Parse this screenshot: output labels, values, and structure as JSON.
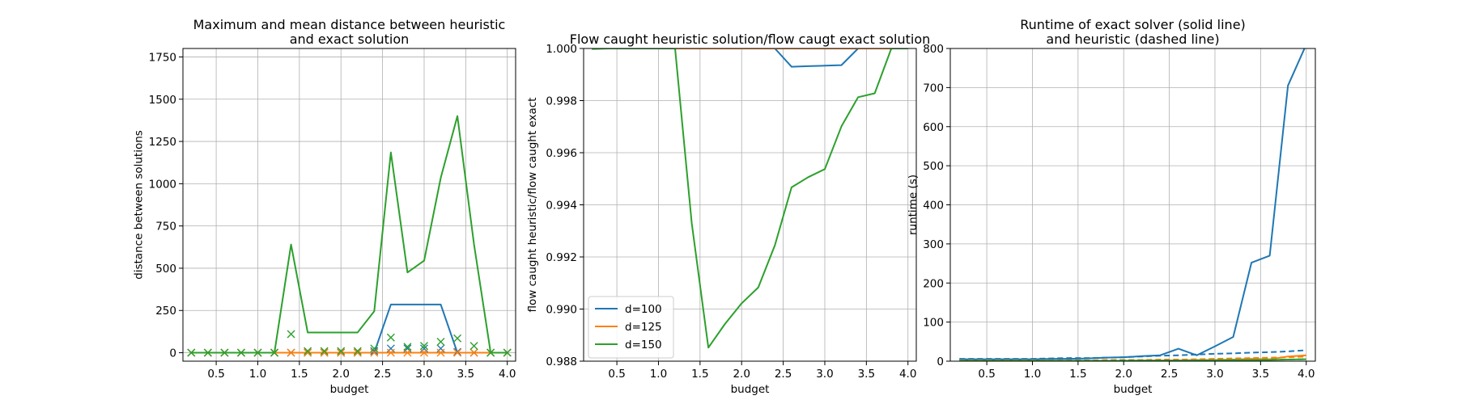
{
  "colors": {
    "d100": "#1f77b4",
    "d125": "#ff7f0e",
    "d150": "#2ca02c",
    "grid": "#b0b0b0",
    "axis": "#000000"
  },
  "chart_data": [
    {
      "type": "line",
      "title": "Maximum and mean distance between heuristic\nand exact solution",
      "xlabel": "budget",
      "ylabel": "distance between solutions",
      "xlim": [
        0.1,
        4.1
      ],
      "ylim": [
        -50,
        1800
      ],
      "xticks": [
        0.5,
        1.0,
        1.5,
        2.0,
        2.5,
        3.0,
        3.5,
        4.0
      ],
      "xtick_labels": [
        "0.5",
        "1.0",
        "1.5",
        "2.0",
        "2.5",
        "3.0",
        "3.5",
        "4.0"
      ],
      "yticks": [
        0,
        250,
        500,
        750,
        1000,
        1250,
        1500,
        1750
      ],
      "ytick_labels": [
        "0",
        "250",
        "500",
        "750",
        "1000",
        "1250",
        "1500",
        "1750"
      ],
      "grid": true,
      "x": [
        0.2,
        0.4,
        0.6,
        0.8,
        1.0,
        1.2,
        1.4,
        1.6,
        1.8,
        2.0,
        2.2,
        2.4,
        2.6,
        2.8,
        3.0,
        3.2,
        3.4,
        3.6,
        3.8,
        4.0
      ],
      "series": [
        {
          "color_key": "d100",
          "line": [
            0,
            0,
            0,
            0,
            0,
            0,
            0,
            0,
            0,
            0,
            0,
            0,
            285,
            285,
            285,
            285,
            0,
            0,
            0,
            0
          ],
          "markers": [
            0,
            0,
            0,
            0,
            0,
            0,
            0,
            0,
            0,
            0,
            0,
            10,
            25,
            25,
            25,
            25,
            5,
            0,
            0,
            0
          ]
        },
        {
          "color_key": "d125",
          "line": [
            0,
            0,
            0,
            0,
            0,
            0,
            0,
            0,
            0,
            0,
            0,
            0,
            0,
            0,
            0,
            0,
            0,
            0,
            0,
            0
          ],
          "markers": [
            0,
            0,
            0,
            0,
            0,
            0,
            0,
            0,
            0,
            0,
            0,
            0,
            0,
            0,
            0,
            0,
            0,
            0,
            0,
            0
          ]
        },
        {
          "color_key": "d150",
          "line": [
            0,
            0,
            0,
            0,
            0,
            0,
            640,
            120,
            120,
            120,
            120,
            245,
            1185,
            475,
            545,
            1035,
            1400,
            640,
            0,
            0
          ],
          "markers": [
            0,
            0,
            0,
            0,
            0,
            0,
            110,
            10,
            10,
            10,
            10,
            25,
            90,
            35,
            40,
            65,
            85,
            40,
            0,
            0
          ]
        }
      ]
    },
    {
      "type": "line",
      "title": "Flow caught heuristic solution/flow caugt exact solution",
      "xlabel": "budget",
      "ylabel": "flow caught heuristic/flow caught exact",
      "xlim": [
        0.1,
        4.1
      ],
      "ylim": [
        0.988,
        1.0
      ],
      "xticks": [
        0.5,
        1.0,
        1.5,
        2.0,
        2.5,
        3.0,
        3.5,
        4.0
      ],
      "xtick_labels": [
        "0.5",
        "1.0",
        "1.5",
        "2.0",
        "2.5",
        "3.0",
        "3.5",
        "4.0"
      ],
      "yticks": [
        0.988,
        0.99,
        0.992,
        0.994,
        0.996,
        0.998,
        1.0
      ],
      "ytick_labels": [
        "0.988",
        "0.990",
        "0.992",
        "0.994",
        "0.996",
        "0.998",
        "1.000"
      ],
      "grid": true,
      "legend_position": "lower-left",
      "x": [
        0.2,
        0.4,
        0.6,
        0.8,
        1.0,
        1.2,
        1.4,
        1.6,
        1.8,
        2.0,
        2.2,
        2.4,
        2.6,
        2.8,
        3.0,
        3.2,
        3.4,
        3.6,
        3.8,
        4.0
      ],
      "series": [
        {
          "name": "d=100",
          "color_key": "d100",
          "values": [
            1.0,
            1.0,
            1.0,
            1.0,
            1.0,
            1.0,
            1.0,
            1.0,
            1.0,
            1.0,
            1.0,
            1.0,
            0.9993,
            0.99932,
            0.99934,
            0.99936,
            1.0,
            1.0,
            1.0,
            1.0
          ]
        },
        {
          "name": "d=125",
          "color_key": "d125",
          "values": [
            1.0,
            1.0,
            1.0,
            1.0,
            1.0,
            1.0,
            1.0,
            1.0,
            1.0,
            1.0,
            1.0,
            1.0,
            1.0,
            1.0,
            1.0,
            1.0,
            1.0,
            1.0,
            1.0,
            1.0
          ]
        },
        {
          "name": "d=150",
          "color_key": "d150",
          "values": [
            0.99998,
            1.0,
            1.0,
            1.0,
            1.0,
            1.0,
            0.9933,
            0.98852,
            0.98943,
            0.99022,
            0.99083,
            0.99245,
            0.99467,
            0.99506,
            0.99537,
            0.99701,
            0.99813,
            0.99828,
            1.0,
            1.0
          ]
        }
      ]
    },
    {
      "type": "line",
      "title": "Runtime of exact solver (solid line)\nand heuristic (dashed line)",
      "xlabel": "budget",
      "ylabel": "runtime (s)",
      "xlim": [
        0.1,
        4.1
      ],
      "ylim": [
        0,
        800
      ],
      "xticks": [
        0.5,
        1.0,
        1.5,
        2.0,
        2.5,
        3.0,
        3.5,
        4.0
      ],
      "xtick_labels": [
        "0.5",
        "1.0",
        "1.5",
        "2.0",
        "2.5",
        "3.0",
        "3.5",
        "4.0"
      ],
      "yticks": [
        0,
        100,
        200,
        300,
        400,
        500,
        600,
        700,
        800
      ],
      "ytick_labels": [
        "0",
        "100",
        "200",
        "300",
        "400",
        "500",
        "600",
        "700",
        "800"
      ],
      "grid": true,
      "x": [
        0.2,
        0.4,
        0.6,
        0.8,
        1.0,
        1.2,
        1.4,
        1.6,
        1.8,
        2.0,
        2.2,
        2.4,
        2.6,
        2.8,
        3.0,
        3.2,
        3.4,
        3.6,
        3.8,
        4.0
      ],
      "series": [
        {
          "color_key": "d100",
          "style": "solid",
          "values": [
            5,
            5,
            5,
            5,
            5,
            6,
            6,
            7,
            9,
            10,
            13,
            15,
            32,
            15,
            38,
            62,
            252,
            270,
            705,
            810
          ]
        },
        {
          "color_key": "d100",
          "style": "dashed",
          "values": [
            6,
            6,
            6,
            6,
            6,
            7,
            8,
            8,
            9,
            10,
            12,
            14,
            15,
            17,
            19,
            20,
            22,
            23,
            25,
            28
          ]
        },
        {
          "color_key": "d125",
          "style": "solid",
          "values": [
            1,
            1,
            1,
            1,
            1,
            1,
            1,
            1,
            1,
            1,
            2,
            2,
            2,
            3,
            3,
            4,
            6,
            5,
            12,
            15
          ]
        },
        {
          "color_key": "d125",
          "style": "dashed",
          "values": [
            2,
            2,
            2,
            2,
            2,
            2,
            2,
            2,
            3,
            3,
            3,
            4,
            4,
            5,
            6,
            7,
            8,
            9,
            10,
            12
          ]
        },
        {
          "color_key": "d150",
          "style": "solid",
          "values": [
            1,
            1,
            1,
            1,
            1,
            1,
            1,
            1,
            1,
            1,
            1,
            1,
            1,
            2,
            2,
            3,
            3,
            3,
            4,
            5
          ]
        },
        {
          "color_key": "d150",
          "style": "dashed",
          "values": [
            1,
            1,
            1,
            1,
            1,
            1,
            1,
            1,
            1,
            2,
            2,
            2,
            2,
            2,
            3,
            3,
            3,
            4,
            4,
            5
          ]
        }
      ]
    }
  ]
}
